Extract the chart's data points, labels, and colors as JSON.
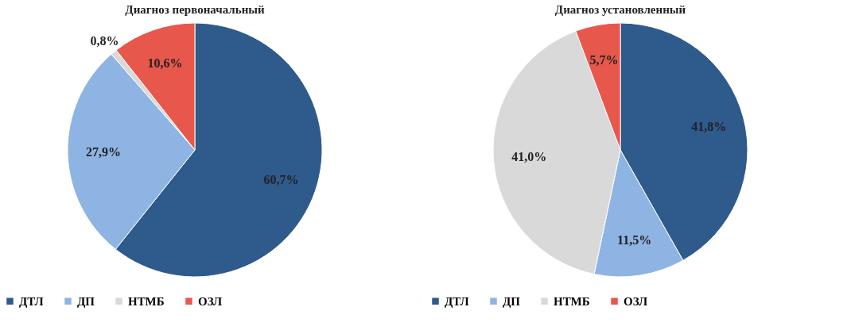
{
  "chart_data": [
    {
      "type": "pie",
      "title": "Диагноз первоначальный",
      "categories": [
        "ДТЛ",
        "ДП",
        "НТМБ",
        "ОЗЛ"
      ],
      "values": [
        60.7,
        27.9,
        0.8,
        10.6
      ],
      "value_labels": [
        "60,7%",
        "27,9%",
        "0,8%",
        "10,6%"
      ],
      "colors": [
        "#2e5a8c",
        "#8eb4e3",
        "#d9d9d9",
        "#e8574c"
      ],
      "legend": "bottom"
    },
    {
      "type": "pie",
      "title": "Диагноз установленный",
      "categories": [
        "ДТЛ",
        "ДП",
        "НТМБ",
        "ОЗЛ"
      ],
      "values": [
        41.8,
        11.5,
        41.0,
        5.7
      ],
      "value_labels": [
        "41,8%",
        "11,5%",
        "41,0%",
        "5,7%"
      ],
      "colors": [
        "#2e5a8c",
        "#8eb4e3",
        "#d9d9d9",
        "#e8574c"
      ],
      "legend": "bottom"
    }
  ]
}
